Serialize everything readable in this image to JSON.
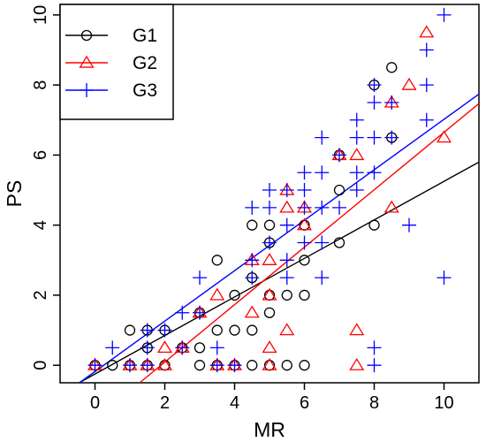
{
  "chart_data": {
    "type": "scatter",
    "title": "",
    "xlabel": "MR",
    "ylabel": "PS",
    "xlim": [
      -1,
      11
    ],
    "ylim": [
      -0.5,
      10.3
    ],
    "xticks": [
      0,
      2,
      4,
      6,
      8,
      10
    ],
    "yticks": [
      0,
      2,
      4,
      6,
      8,
      10
    ],
    "grid": false,
    "legend_position": "top-left",
    "series": [
      {
        "name": "G1",
        "marker": "circle",
        "color": "#000000",
        "fit": {
          "slope": 0.55,
          "intercept": -0.25
        },
        "points": [
          [
            0,
            0
          ],
          [
            0.5,
            0
          ],
          [
            1,
            0
          ],
          [
            1.5,
            0
          ],
          [
            2,
            0
          ],
          [
            3,
            0
          ],
          [
            3.5,
            0
          ],
          [
            4,
            0
          ],
          [
            4.5,
            0
          ],
          [
            5,
            0
          ],
          [
            5.5,
            0
          ],
          [
            6,
            0
          ],
          [
            1,
            1
          ],
          [
            1.5,
            0.5
          ],
          [
            1.5,
            1
          ],
          [
            2,
            1
          ],
          [
            2.5,
            0.5
          ],
          [
            3,
            0.5
          ],
          [
            3,
            1.5
          ],
          [
            3.5,
            1
          ],
          [
            3.5,
            3
          ],
          [
            4,
            1
          ],
          [
            4,
            2
          ],
          [
            4.5,
            1
          ],
          [
            4.5,
            2.5
          ],
          [
            4.5,
            4
          ],
          [
            5,
            1.5
          ],
          [
            5,
            2
          ],
          [
            5,
            3.5
          ],
          [
            5,
            4
          ],
          [
            5.5,
            2
          ],
          [
            6,
            2
          ],
          [
            6,
            3
          ],
          [
            6,
            4
          ],
          [
            7,
            3.5
          ],
          [
            7,
            5
          ],
          [
            7,
            6
          ],
          [
            8,
            4
          ],
          [
            8,
            8
          ],
          [
            8.5,
            6.5
          ],
          [
            8.5,
            8.5
          ]
        ]
      },
      {
        "name": "G2",
        "marker": "triangle",
        "color": "#ff0000",
        "fit": {
          "slope": 0.82,
          "intercept": -1.55
        },
        "points": [
          [
            0,
            0
          ],
          [
            1,
            0
          ],
          [
            1.5,
            0
          ],
          [
            2,
            0
          ],
          [
            3.5,
            0
          ],
          [
            4,
            0
          ],
          [
            5,
            0
          ],
          [
            7.5,
            0
          ],
          [
            2,
            0.5
          ],
          [
            5,
            0.5
          ],
          [
            2.5,
            0.5
          ],
          [
            3,
            1.5
          ],
          [
            3.5,
            2
          ],
          [
            4.5,
            1.5
          ],
          [
            4.5,
            3
          ],
          [
            5,
            2
          ],
          [
            5,
            3
          ],
          [
            5.5,
            1
          ],
          [
            5.5,
            4.5
          ],
          [
            5.5,
            5
          ],
          [
            6,
            4.5
          ],
          [
            6,
            4
          ],
          [
            7,
            6
          ],
          [
            7.5,
            6
          ],
          [
            7.5,
            1
          ],
          [
            8.5,
            7.5
          ],
          [
            8.5,
            4.5
          ],
          [
            9,
            8
          ],
          [
            9.5,
            9.5
          ],
          [
            10,
            6.5
          ]
        ]
      },
      {
        "name": "G3",
        "marker": "plus",
        "color": "#0000ff",
        "fit": {
          "slope": 0.72,
          "intercept": -0.18
        },
        "points": [
          [
            0,
            0
          ],
          [
            0.5,
            0.5
          ],
          [
            1,
            0
          ],
          [
            1.5,
            0
          ],
          [
            1.5,
            0.5
          ],
          [
            1.5,
            1
          ],
          [
            2,
            1
          ],
          [
            2.5,
            0.5
          ],
          [
            2.5,
            1.5
          ],
          [
            3,
            1.5
          ],
          [
            3,
            2.5
          ],
          [
            3.5,
            0.5
          ],
          [
            3.5,
            0
          ],
          [
            4,
            0
          ],
          [
            4.5,
            2.5
          ],
          [
            4.5,
            3
          ],
          [
            4.5,
            4.5
          ],
          [
            5,
            4.5
          ],
          [
            5,
            5
          ],
          [
            5,
            3.5
          ],
          [
            5.5,
            2.5
          ],
          [
            5.5,
            3
          ],
          [
            5.5,
            4
          ],
          [
            5.5,
            5
          ],
          [
            6,
            3.5
          ],
          [
            6,
            4.5
          ],
          [
            6,
            5
          ],
          [
            6,
            5.5
          ],
          [
            6.5,
            2.5
          ],
          [
            6.5,
            3.5
          ],
          [
            6.5,
            4.5
          ],
          [
            6.5,
            5.5
          ],
          [
            6.5,
            6.5
          ],
          [
            7,
            4.5
          ],
          [
            7,
            6
          ],
          [
            7.5,
            5
          ],
          [
            7.5,
            5.5
          ],
          [
            7.5,
            6.5
          ],
          [
            7.5,
            7
          ],
          [
            8,
            0
          ],
          [
            8,
            0.5
          ],
          [
            8,
            5.5
          ],
          [
            8,
            6.5
          ],
          [
            8,
            7.5
          ],
          [
            8,
            8
          ],
          [
            8.5,
            6.5
          ],
          [
            8.5,
            7.5
          ],
          [
            9,
            4
          ],
          [
            9.5,
            7
          ],
          [
            9.5,
            8
          ],
          [
            9.5,
            9
          ],
          [
            10,
            2.5
          ],
          [
            10,
            10
          ]
        ]
      }
    ]
  }
}
